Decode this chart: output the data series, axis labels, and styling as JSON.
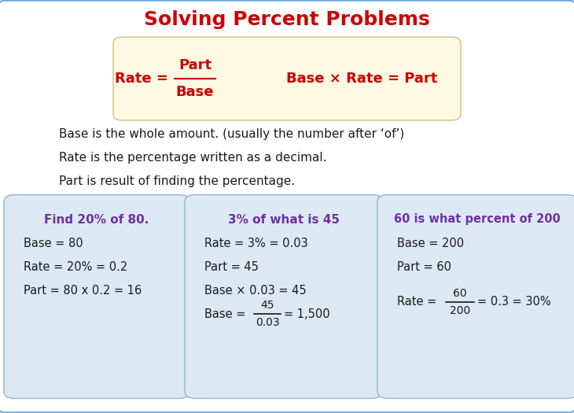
{
  "title": "Solving Percent Problems",
  "title_color": "#cc0000",
  "title_fontsize": 18,
  "bg_color": "#ffffff",
  "border_color": "#6fa8dc",
  "formula_box_color": "#fef9e3",
  "formula_box_border": "#d4c07a",
  "example_box_color": "#dce9f5",
  "example_box_border": "#90b4d4",
  "formula_text_color": "#cc0000",
  "body_text_color": "#1a1a1a",
  "example_title_color": "#7030a0",
  "example_body_color": "#1a1a1a",
  "desc_lines": [
    "Base is the whole amount. (usually the number after ‘of’)",
    "Rate is the percentage written as a decimal.",
    "Part is result of finding the percentage."
  ],
  "example1_title": "Find 20% of 80.",
  "example1_lines": [
    "Base = 80",
    "Rate = 20% = 0.2",
    "Part = 80 x 0.2 = 16"
  ],
  "example2_title": "3% of what is 45",
  "example2_lines": [
    "Rate = 3% = 0.03",
    "Part = 45",
    "Base × 0.03 = 45"
  ],
  "example3_title": "60 is what percent of 200",
  "example3_lines": [
    "Base = 200",
    "Part = 60"
  ]
}
